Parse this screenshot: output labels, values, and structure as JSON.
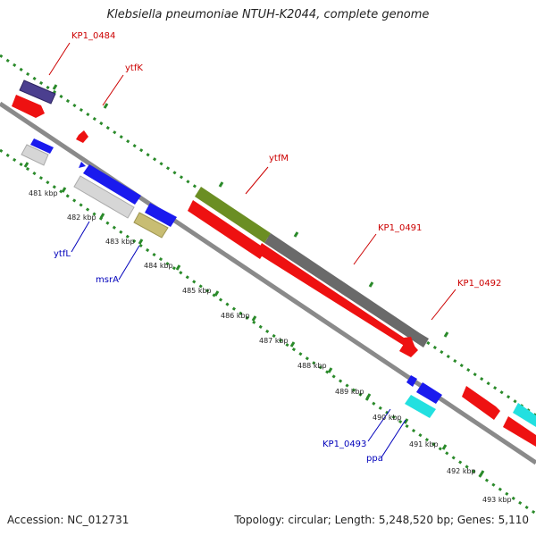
{
  "title": "Klebsiella pneumoniae NTUH-K2044, complete genome",
  "footer": {
    "accession": "Accession: NC_012731",
    "summary": "Topology: circular; Length: 5,248,520 bp; Genes: 5,110"
  },
  "ruler_ticks": [
    "481 kbp",
    "482 kbp",
    "483 kbp",
    "484 kbp",
    "485 kbp",
    "486 kbp",
    "487 kbp",
    "488 kbp",
    "489 kbp",
    "490 kbp",
    "491 kbp",
    "492 kbp",
    "493 kbp"
  ],
  "gene_labels": {
    "kp1_0484": "KP1_0484",
    "ytfk": "ytfK",
    "ytfm": "ytfM",
    "kp1_0491": "KP1_0491",
    "kp1_0492": "KP1_0492",
    "ytfl": "ytfL",
    "msra": "msrA",
    "kp1_0493": "KP1_0493",
    "ppa": "ppa"
  },
  "colors": {
    "backbone": "#8a8a8a",
    "track_dots": "#2a8a2a",
    "forward_label": "#cc0000",
    "reverse_label": "#0000bb",
    "red_gene": "#ee1111",
    "blue_gene": "#1a1aee",
    "purple_gene": "#4b3f8f",
    "grey_gene": "#d6d6d6",
    "olive_gene": "#6b8e23",
    "dark_grey_gene": "#6a6a6a",
    "khaki_gene": "#c8bd73",
    "cyan_gene": "#22e0e0"
  }
}
